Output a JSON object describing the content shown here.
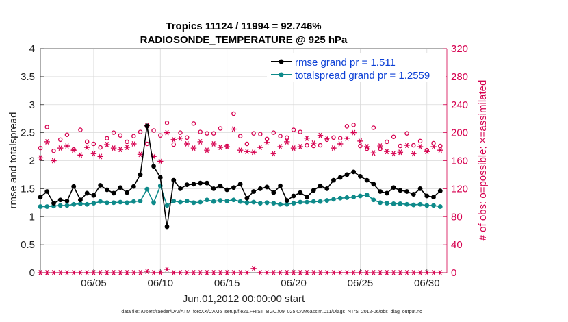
{
  "chart_data": {
    "type": "line",
    "title": "Tropics 11124 / 11994 = 92.746%",
    "subtitle": "RADIOSONDE_TEMPERATURE @ 925 hPa",
    "xlabel": "Jun.01,2012 00:00:00 start",
    "ylabel": "rmse and totalspread",
    "ylabel_right": "# of obs: o=possible; ×=assimilated",
    "footer": "data file: /Users/raeder/DAI/ATM_forcXX/CAM6_setup/f.e21.FHIST_BGC.f09_025.CAM6assim.011/Diags_NTrS_2012-06/obs_diag_output.nc",
    "xlim": [
      1,
      31.5
    ],
    "ylim": [
      0,
      4
    ],
    "ylim_right": [
      0,
      320
    ],
    "x_ticks": [
      5,
      10,
      15,
      20,
      25,
      30
    ],
    "x_tick_labels": [
      "06/05",
      "06/10",
      "06/15",
      "06/20",
      "06/25",
      "06/30"
    ],
    "y_ticks": [
      0,
      0.5,
      1,
      1.5,
      2,
      2.5,
      3,
      3.5,
      4
    ],
    "y_tick_labels": [
      "0",
      "0.5",
      "1",
      "1.5",
      "2",
      "2.5",
      "3",
      "3.5",
      "4"
    ],
    "y2_ticks": [
      0,
      40,
      80,
      120,
      160,
      200,
      240,
      280,
      320
    ],
    "y2_tick_labels": [
      "0",
      "40",
      "80",
      "120",
      "160",
      "200",
      "240",
      "280",
      "320"
    ],
    "legend": [
      {
        "label": "rmse grand pr = 1.511",
        "color": "#000000"
      },
      {
        "label": "totalspread grand pr = 1.2559",
        "color": "#0e8a8a"
      }
    ],
    "colors": {
      "rmse": "#000000",
      "spread": "#0e8a8a",
      "obs": "#d6004f",
      "grid": "#d9d9d9"
    },
    "x": [
      1.0,
      1.5,
      2.0,
      2.5,
      3.0,
      3.5,
      4.0,
      4.5,
      5.0,
      5.5,
      6.0,
      6.5,
      7.0,
      7.5,
      8.0,
      8.5,
      9.0,
      9.5,
      10.0,
      10.5,
      11.0,
      11.5,
      12.0,
      12.5,
      13.0,
      13.5,
      14.0,
      14.5,
      15.0,
      15.5,
      16.0,
      16.5,
      17.0,
      17.5,
      18.0,
      18.5,
      19.0,
      19.5,
      20.0,
      20.5,
      21.0,
      21.5,
      22.0,
      22.5,
      23.0,
      23.5,
      24.0,
      24.5,
      25.0,
      25.5,
      26.0,
      26.5,
      27.0,
      27.5,
      28.0,
      28.5,
      29.0,
      29.5,
      30.0,
      30.5,
      31.0
    ],
    "series": [
      {
        "name": "rmse",
        "values": [
          1.35,
          1.45,
          1.24,
          1.3,
          1.28,
          1.54,
          1.3,
          1.42,
          1.38,
          1.56,
          1.48,
          1.42,
          1.52,
          1.43,
          1.54,
          1.75,
          2.62,
          1.9,
          1.7,
          0.82,
          1.65,
          1.5,
          1.57,
          1.58,
          1.6,
          1.6,
          1.5,
          1.55,
          1.48,
          1.52,
          1.58,
          1.33,
          1.45,
          1.5,
          1.53,
          1.43,
          1.55,
          1.29,
          1.37,
          1.43,
          1.35,
          1.47,
          1.55,
          1.5,
          1.65,
          1.7,
          1.75,
          1.8,
          1.72,
          1.65,
          1.58,
          1.45,
          1.42,
          1.52,
          1.47,
          1.45,
          1.4,
          1.5,
          1.37,
          1.35,
          1.46
        ]
      },
      {
        "name": "totalspread",
        "values": [
          1.18,
          1.18,
          1.19,
          1.2,
          1.2,
          1.22,
          1.23,
          1.22,
          1.24,
          1.27,
          1.25,
          1.25,
          1.26,
          1.25,
          1.27,
          1.28,
          1.49,
          1.25,
          1.55,
          1.2,
          1.28,
          1.26,
          1.28,
          1.25,
          1.26,
          1.3,
          1.27,
          1.29,
          1.28,
          1.3,
          1.27,
          1.25,
          1.26,
          1.24,
          1.25,
          1.24,
          1.22,
          1.22,
          1.24,
          1.26,
          1.26,
          1.27,
          1.27,
          1.29,
          1.31,
          1.33,
          1.34,
          1.35,
          1.37,
          1.39,
          1.3,
          1.25,
          1.24,
          1.23,
          1.23,
          1.22,
          1.21,
          1.22,
          1.2,
          1.2,
          1.18
        ]
      },
      {
        "name": "obs possible",
        "axis": "right",
        "values": [
          178,
          208,
          174,
          190,
          197,
          176,
          204,
          187,
          184,
          179,
          192,
          200,
          196,
          187,
          195,
          201,
          184,
          203,
          196,
          214,
          183,
          200,
          193,
          213,
          201,
          199,
          199,
          206,
          181,
          227,
          195,
          184,
          199,
          198,
          191,
          200,
          195,
          193,
          204,
          201,
          182,
          181,
          182,
          190,
          193,
          192,
          209,
          211,
          181,
          177,
          207,
          177,
          187,
          194,
          181,
          199,
          182,
          188,
          175,
          185,
          181
        ]
      },
      {
        "name": "obs assimilated",
        "axis": "right",
        "values": [
          164,
          187,
          160,
          178,
          181,
          175,
          168,
          179,
          170,
          166,
          183,
          178,
          176,
          179,
          184,
          169,
          210,
          166,
          159,
          200,
          190,
          192,
          184,
          178,
          187,
          175,
          184,
          179,
          180,
          205,
          175,
          173,
          172,
          179,
          186,
          170,
          180,
          187,
          178,
          180,
          192,
          185,
          196,
          192,
          178,
          184,
          192,
          200,
          188,
          180,
          171,
          181,
          173,
          170,
          172,
          182,
          170,
          180,
          173,
          180,
          175
        ]
      },
      {
        "name": "obs zero row",
        "axis": "right",
        "values": [
          0,
          0,
          0,
          0,
          0,
          0,
          0,
          0,
          0,
          0,
          0,
          0,
          0,
          0,
          0,
          0,
          2,
          0,
          0,
          5,
          0,
          0,
          0,
          0,
          0,
          0,
          0,
          0,
          0,
          0,
          0,
          0,
          6,
          0,
          0,
          0,
          0,
          0,
          0,
          0,
          0,
          0,
          0,
          0,
          0,
          0,
          0,
          0,
          0,
          0,
          0,
          0,
          0,
          0,
          0,
          0,
          0,
          0,
          0,
          0,
          0
        ]
      }
    ]
  }
}
